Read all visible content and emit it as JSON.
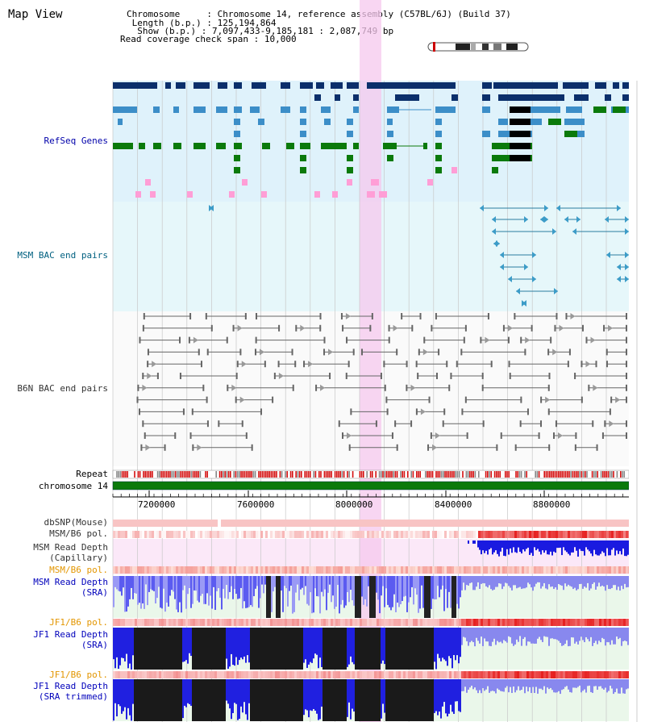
{
  "app": {
    "title": "Map View"
  },
  "info": {
    "chromosome_label": "Chromosome",
    "chromosome_value": "Chromosome 14, reference assembly (C57BL/6J) (Build 37)",
    "length_label": "Length (b.p.)",
    "length_value": "125,194,864",
    "show_label": "Show (b.p.)",
    "show_value": "7,097,433-9,185,181 : 2,087,749 bp",
    "span_label": "Read coverage check span",
    "span_value": "10,000"
  },
  "tracks": {
    "refseq": "RefSeq Genes",
    "msm_bac": "MSM BAC end pairs",
    "b6n_bac": "B6N BAC end pairs",
    "repeat": "Repeat",
    "chromosome": "chromosome 14",
    "dbsnp": "dbSNP(Mouse)",
    "msm_b6_pol1": "MSM/B6 pol.",
    "msm_depth_cap_1": "MSM Read Depth",
    "msm_depth_cap_2": "(Capillary)",
    "msm_b6_pol2": "MSM/B6 pol.",
    "msm_depth_sra_1": "MSM Read Depth",
    "msm_depth_sra_2": "(SRA)",
    "jf1_b6_pol1": "JF1/B6 pol.",
    "jf1_depth_sra_1": "JF1 Read Depth",
    "jf1_depth_sra_2": "(SRA)",
    "jf1_b6_pol2": "JF1/B6 pol.",
    "jf1_depth_trim_1": "JF1 Read Depth",
    "jf1_depth_trim_2": "(SRA trimmed)"
  },
  "axis": {
    "ticks": [
      "7200000",
      "7600000",
      "8000000",
      "8400000",
      "8800000"
    ]
  },
  "colors": {
    "refseq_bg": "#dff2fb",
    "bac_bg": "#e6f7fa",
    "highlight": "#f6c8ee",
    "chromosome": "#0b7a0b",
    "gene_dark": "#0b2f6b",
    "gene_mid": "#3c8ec8",
    "gene_green": "#0b7a0b",
    "pink_feature": "#ff9ed6"
  }
}
